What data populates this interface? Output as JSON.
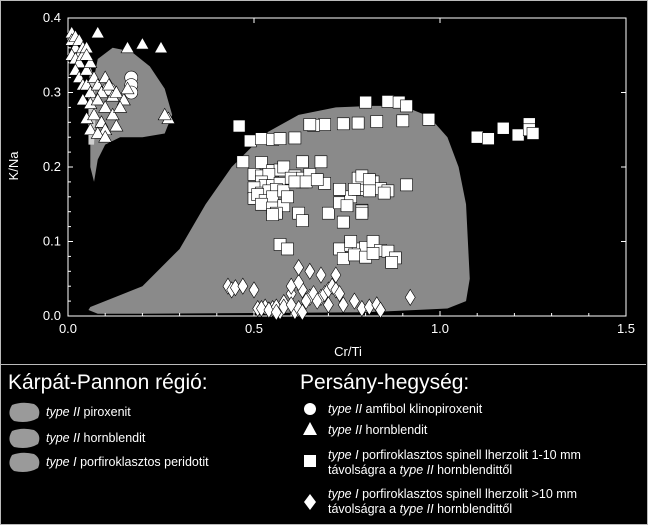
{
  "chart_data": {
    "type": "scatter",
    "xlabel": "Cr/Ti",
    "ylabel": "K/Na",
    "xlim": [
      0,
      1.5
    ],
    "ylim": [
      0,
      0.4
    ],
    "x_ticks": [
      "0.0",
      "0.5",
      "1.0",
      "1.5"
    ],
    "y_ticks": [
      "0.0",
      "0.1",
      "0.2",
      "0.3",
      "0.4"
    ],
    "fields": [
      {
        "name": "type II piroxenit",
        "color": "#8a8a8a",
        "polygon": [
          [
            0.08,
            0.345
          ],
          [
            0.12,
            0.36
          ],
          [
            0.17,
            0.355
          ],
          [
            0.22,
            0.335
          ],
          [
            0.26,
            0.305
          ],
          [
            0.28,
            0.27
          ],
          [
            0.26,
            0.245
          ],
          [
            0.2,
            0.24
          ],
          [
            0.14,
            0.24
          ],
          [
            0.1,
            0.23
          ],
          [
            0.08,
            0.21
          ],
          [
            0.07,
            0.18
          ],
          [
            0.06,
            0.2
          ],
          [
            0.06,
            0.26
          ],
          [
            0.07,
            0.32
          ]
        ]
      },
      {
        "name": "type II hornblendit",
        "color": "#cfcfcf",
        "polygon": [
          [
            0.055,
            0.23
          ],
          [
            0.07,
            0.23
          ],
          [
            0.075,
            0.28
          ],
          [
            0.07,
            0.32
          ],
          [
            0.06,
            0.335
          ],
          [
            0.055,
            0.3
          ]
        ]
      },
      {
        "name": "type I porfiroklasztos peridotit",
        "color": "#8a8a8a",
        "polygon": [
          [
            0.06,
            0.012
          ],
          [
            0.2,
            0.04
          ],
          [
            0.3,
            0.09
          ],
          [
            0.37,
            0.15
          ],
          [
            0.44,
            0.2
          ],
          [
            0.53,
            0.245
          ],
          [
            0.62,
            0.27
          ],
          [
            0.72,
            0.28
          ],
          [
            0.82,
            0.282
          ],
          [
            0.9,
            0.282
          ],
          [
            0.97,
            0.268
          ],
          [
            1.02,
            0.24
          ],
          [
            1.05,
            0.2
          ],
          [
            1.07,
            0.15
          ],
          [
            1.075,
            0.1
          ],
          [
            1.08,
            0.05
          ],
          [
            1.07,
            0.02
          ],
          [
            1.02,
            0.01
          ],
          [
            0.8,
            0.005
          ],
          [
            0.5,
            0.004
          ],
          [
            0.2,
            0.003
          ],
          [
            0.08,
            0.003
          ],
          [
            0.055,
            0.008
          ]
        ]
      }
    ],
    "series": [
      {
        "name": "type II amfibol klinopiroxenit",
        "marker": "circle",
        "x": [
          0.11,
          0.17,
          0.17,
          0.17
        ],
        "y": [
          0.305,
          0.32,
          0.31,
          0.3
        ]
      },
      {
        "name": "type II hornblendit",
        "marker": "triangle",
        "x": [
          0.01,
          0.01,
          0.02,
          0.02,
          0.03,
          0.03,
          0.04,
          0.01,
          0.02,
          0.03,
          0.04,
          0.05,
          0.02,
          0.03,
          0.05,
          0.06,
          0.04,
          0.05,
          0.07,
          0.06,
          0.08,
          0.09,
          0.1,
          0.04,
          0.06,
          0.08,
          0.1,
          0.12,
          0.11,
          0.13,
          0.15,
          0.16,
          0.05,
          0.07,
          0.09,
          0.12,
          0.14,
          0.1,
          0.13,
          0.06,
          0.08,
          0.1,
          0.2,
          0.25,
          0.16,
          0.27,
          0.26,
          0.05,
          0.08
        ],
        "y": [
          0.38,
          0.37,
          0.375,
          0.36,
          0.37,
          0.35,
          0.36,
          0.35,
          0.345,
          0.34,
          0.35,
          0.36,
          0.33,
          0.32,
          0.33,
          0.34,
          0.31,
          0.31,
          0.32,
          0.3,
          0.31,
          0.3,
          0.32,
          0.29,
          0.285,
          0.29,
          0.28,
          0.295,
          0.31,
          0.3,
          0.29,
          0.305,
          0.265,
          0.27,
          0.26,
          0.27,
          0.28,
          0.25,
          0.255,
          0.25,
          0.245,
          0.24,
          0.365,
          0.36,
          0.36,
          0.265,
          0.27,
          0.35,
          0.38
        ]
      },
      {
        "name": "type I porfiroklasztos spinell lherzolit 1-10 mm távolságra a type II hornblendittől",
        "marker": "square",
        "x": [
          0.46,
          0.49,
          0.52,
          0.55,
          0.57,
          0.61,
          0.47,
          0.52,
          0.63,
          0.68,
          0.8,
          0.86,
          0.89,
          0.91,
          0.97,
          0.9,
          0.83,
          0.78,
          0.74,
          0.69,
          0.66,
          0.65,
          0.55,
          0.57,
          0.5,
          0.52,
          0.54,
          0.58,
          0.61,
          0.63,
          0.52,
          0.53,
          0.55,
          0.57,
          0.6,
          0.63,
          0.5,
          0.52,
          0.54,
          0.56,
          0.5,
          0.51,
          0.53,
          0.55,
          0.58,
          0.52,
          0.55,
          0.58,
          0.56,
          0.62,
          0.7,
          0.73,
          0.76,
          0.78,
          0.8,
          0.82,
          0.84,
          0.86,
          0.78,
          0.79,
          0.81,
          0.65,
          0.69,
          0.73,
          0.77,
          0.75,
          0.79,
          0.73,
          0.76,
          0.78,
          0.8,
          0.82,
          0.74,
          0.77,
          0.8,
          0.84,
          0.86,
          0.76,
          1.1,
          1.13,
          1.17,
          1.21,
          1.24,
          1.24,
          1.25,
          0.91,
          0.63,
          0.61,
          0.55,
          0.59,
          0.64,
          0.67,
          0.57,
          0.59,
          0.74,
          0.79,
          0.79,
          0.82
        ],
        "y": [
          0.255,
          0.235,
          0.238,
          0.237,
          0.238,
          0.239,
          0.207,
          0.206,
          0.207,
          0.207,
          0.287,
          0.288,
          0.287,
          0.282,
          0.264,
          0.262,
          0.261,
          0.259,
          0.258,
          0.257,
          0.256,
          0.257,
          0.195,
          0.196,
          0.19,
          0.188,
          0.19,
          0.2,
          0.188,
          0.18,
          0.18,
          0.175,
          0.175,
          0.178,
          0.185,
          0.185,
          0.172,
          0.165,
          0.168,
          0.17,
          0.158,
          0.163,
          0.155,
          0.16,
          0.168,
          0.15,
          0.145,
          0.148,
          0.138,
          0.138,
          0.138,
          0.152,
          0.16,
          0.17,
          0.175,
          0.18,
          0.171,
          0.168,
          0.185,
          0.188,
          0.183,
          0.19,
          0.178,
          0.17,
          0.17,
          0.148,
          0.142,
          0.09,
          0.095,
          0.09,
          0.092,
          0.1,
          0.077,
          0.082,
          0.079,
          0.088,
          0.087,
          0.1,
          0.24,
          0.238,
          0.252,
          0.243,
          0.258,
          0.25,
          0.245,
          0.176,
          0.128,
          0.18,
          0.136,
          0.16,
          0.18,
          0.183,
          0.096,
          0.09,
          0.126,
          0.141,
          0.138,
          0.084
        ],
        "x_extra": [
          0.88,
          0.87,
          0.81,
          0.85
        ],
        "y_extra": [
          0.078,
          0.072,
          0.168,
          0.165
        ]
      },
      {
        "name": "type I porfiroklasztos spinell lherzolit >10 mm távolságra a type II hornblendittől",
        "marker": "diamond",
        "x": [
          0.43,
          0.44,
          0.45,
          0.47,
          0.5,
          0.51,
          0.53,
          0.54,
          0.55,
          0.57,
          0.52,
          0.54,
          0.56,
          0.58,
          0.61,
          0.6,
          0.63,
          0.65,
          0.66,
          0.68,
          0.69,
          0.7,
          0.71,
          0.72,
          0.73,
          0.62,
          0.64,
          0.67,
          0.7,
          0.74,
          0.77,
          0.79,
          0.81,
          0.83,
          0.84,
          0.92,
          0.6,
          0.62,
          0.65,
          0.62,
          0.68,
          0.72,
          0.56,
          0.58,
          0.6,
          0.63
        ],
        "y": [
          0.04,
          0.035,
          0.038,
          0.04,
          0.035,
          0.01,
          0.012,
          0.008,
          0.01,
          0.006,
          0.01,
          0.008,
          0.012,
          0.018,
          0.006,
          0.03,
          0.035,
          0.025,
          0.03,
          0.025,
          0.03,
          0.035,
          0.04,
          0.035,
          0.03,
          0.01,
          0.02,
          0.02,
          0.015,
          0.015,
          0.02,
          0.01,
          0.012,
          0.015,
          0.008,
          0.025,
          0.04,
          0.045,
          0.06,
          0.065,
          0.055,
          0.055,
          0.005,
          0.012,
          0.015,
          0.005
        ]
      }
    ]
  },
  "legend": {
    "left_title": "Kárpát-Pannon régió:",
    "right_title": "Persány-hegység:",
    "left_items": [
      {
        "type": "type II",
        "text": "piroxenit"
      },
      {
        "type": "type II",
        "text": "hornblendit"
      },
      {
        "type": "type I",
        "text": "porfiroklasztos peridotit"
      }
    ],
    "right_items": [
      {
        "type": "type II",
        "text": "amfibol klinopiroxenit",
        "line2_pre": "",
        "line2_type": "",
        "line2_post": ""
      },
      {
        "type": "type II",
        "text": "hornblendit",
        "line2_pre": "",
        "line2_type": "",
        "line2_post": ""
      },
      {
        "type": "type I",
        "text": "porfiroklasztos spinell lherzolit 1-10 mm",
        "line2_pre": "távolságra a ",
        "line2_type": "type II",
        "line2_post": " hornblendittől"
      },
      {
        "type": "type I",
        "text": "porfiroklasztos spinell lherzolit >10 mm",
        "line2_pre": "távolságra a ",
        "line2_type": "type II",
        "line2_post": " hornblendittől"
      }
    ]
  }
}
